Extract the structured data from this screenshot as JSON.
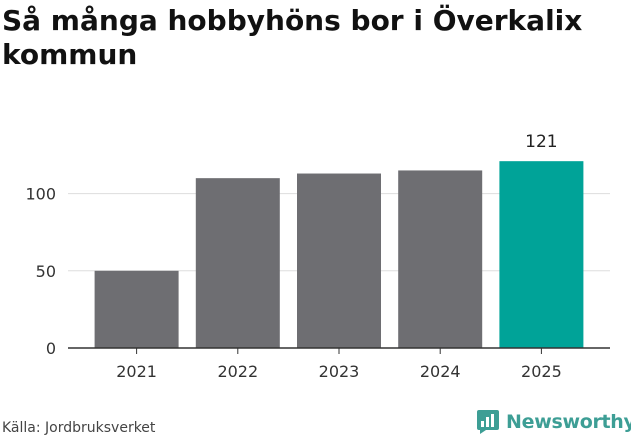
{
  "title": "Så många hobbyhöns bor i Överkalix kommun",
  "source": "Källa: Jordbruksverket",
  "brand": "Newsworthy",
  "colors": {
    "bar": "#6e6e72",
    "highlight": "#00a398",
    "grid": "#dddddd",
    "axis": "#333333",
    "brand": "#3d9e95"
  },
  "chart_data": {
    "type": "bar",
    "categories": [
      "2021",
      "2022",
      "2023",
      "2024",
      "2025"
    ],
    "values": [
      50,
      110,
      113,
      115,
      121
    ],
    "highlight_index": 4,
    "data_labels": [
      "",
      "",
      "",
      "",
      "121"
    ],
    "yticks": [
      0,
      50,
      100
    ],
    "ylim": [
      0,
      125
    ],
    "grid": true,
    "xlabel": "",
    "ylabel": ""
  }
}
